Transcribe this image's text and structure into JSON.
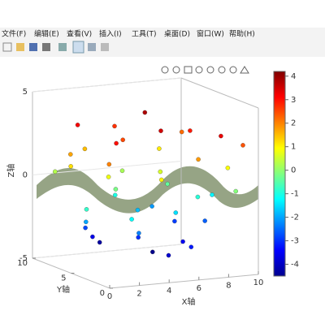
{
  "menu": [
    "文件(F)",
    "编辑(E)",
    "查看(V)",
    "插入(I)",
    "工具(T)",
    "桌面(D)",
    "窗口(W)",
    "帮助(H)"
  ],
  "chart_data": {
    "type": "scatter3d",
    "x": [
      2,
      4,
      6,
      8,
      5,
      1,
      3,
      7,
      9,
      0.5,
      2,
      4,
      6,
      8,
      9.5,
      1,
      3,
      5,
      7,
      9,
      0,
      2,
      4,
      6,
      8,
      10,
      1,
      3,
      5,
      7,
      9,
      2,
      4,
      6,
      8,
      3,
      5,
      7,
      4,
      6,
      2,
      8,
      5,
      1,
      10
    ],
    "y": [
      8,
      6,
      7,
      5,
      3,
      2,
      9,
      2,
      8,
      6,
      4,
      1,
      5,
      9,
      3,
      9,
      5,
      8,
      6,
      1,
      3,
      1,
      7,
      3,
      4,
      6,
      5,
      2,
      6,
      8,
      5,
      7,
      4,
      1,
      7,
      8,
      2,
      4,
      9,
      6,
      3,
      1,
      9,
      7,
      2
    ],
    "z": [
      3.2,
      2.5,
      3.8,
      2.9,
      3.5,
      2.0,
      1.5,
      1.8,
      2.2,
      1.2,
      0.8,
      1.0,
      0.6,
      1.1,
      0.9,
      0.3,
      -0.2,
      0.2,
      -0.4,
      -0.1,
      -0.8,
      -1.2,
      -1.0,
      -1.5,
      -0.9,
      -1.3,
      -2.0,
      -2.3,
      -1.8,
      -2.1,
      -2.6,
      -2.8,
      -3.0,
      -3.2,
      -2.9,
      -3.6,
      -3.8,
      -3.5,
      -4.2,
      -4.4,
      3.0,
      3.3,
      2.7,
      1.7,
      2.4
    ],
    "xlabel": "X轴",
    "ylabel": "Y轴",
    "zlabel": "Z轴",
    "xlim": [
      0,
      10
    ],
    "ylim": [
      0,
      10
    ],
    "zlim": [
      -5,
      5
    ],
    "xticks": [
      0,
      2,
      4,
      6,
      8,
      10
    ],
    "yticks": [
      0,
      5,
      10
    ],
    "zticks": [
      -5,
      0,
      5
    ],
    "clim": [
      -4.5,
      4.2
    ],
    "cticks": [
      4,
      3,
      2,
      1,
      0,
      -1,
      -2,
      -3,
      -4
    ]
  }
}
